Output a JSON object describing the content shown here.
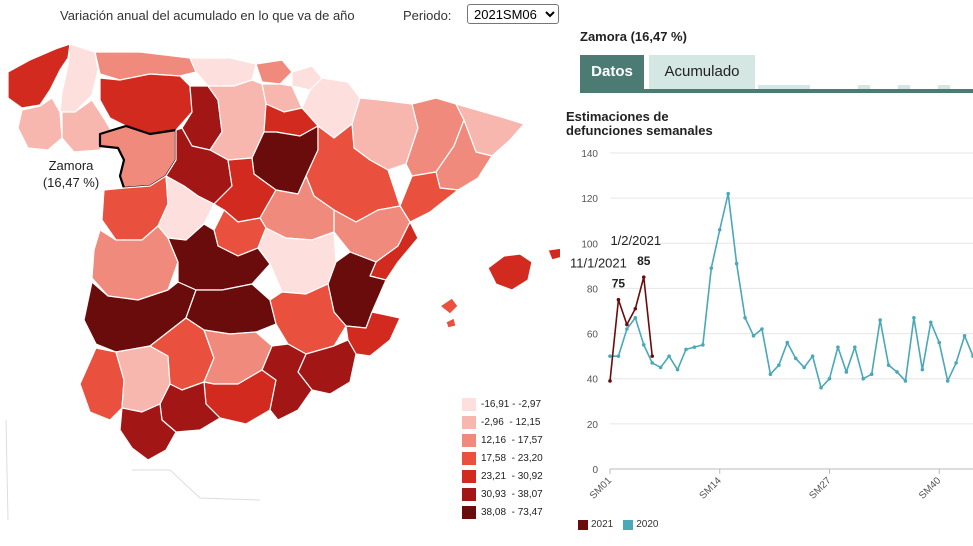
{
  "header": {
    "title": "Variación anual del acumulado en lo que va de año",
    "period_label": "Periodo:",
    "period_value": "2021SM06"
  },
  "map": {
    "selected_region": "Zamora",
    "selected_value": "(16,47 %)",
    "legend": [
      {
        "label": "-16,91 - -2,97",
        "color": "#fde0dd"
      },
      {
        "label": "-2,96  - 12,15",
        "color": "#f7b6ae"
      },
      {
        "label": "12,16  - 17,57",
        "color": "#f08a7c"
      },
      {
        "label": "17,58  - 23,20",
        "color": "#e9503d"
      },
      {
        "label": "23,21  - 30,92",
        "color": "#d22a1e"
      },
      {
        "label": "30,93  - 38,07",
        "color": "#a31616"
      },
      {
        "label": "38,08  - 73,47",
        "color": "#6b0c0c"
      }
    ]
  },
  "detail": {
    "title": "Zamora (16,47 %)",
    "tabs": [
      "Datos",
      "Acumulado"
    ],
    "chart_title_line1": "Estimaciones de",
    "chart_title_line2": "defunciones semanales"
  },
  "chart_data": {
    "type": "line",
    "title": "Estimaciones de defunciones semanales",
    "ylim": [
      0,
      140
    ],
    "yticks": [
      0,
      20,
      40,
      60,
      80,
      100,
      120,
      140
    ],
    "xticks": [
      {
        "week": 1,
        "label": "SM01"
      },
      {
        "week": 14,
        "label": "SM14"
      },
      {
        "week": 27,
        "label": "SM27"
      },
      {
        "week": 40,
        "label": "SM40"
      }
    ],
    "grid": "horizontal",
    "legend_position": "bottom-left",
    "series": [
      {
        "name": "2021",
        "color": "#6b0c0c",
        "weeks": [
          1,
          2,
          3,
          4,
          5,
          6
        ],
        "values": [
          39,
          75,
          64,
          71,
          85,
          50
        ]
      },
      {
        "name": "2020",
        "color": "#4aa8b8",
        "weeks": [
          1,
          2,
          3,
          4,
          5,
          6,
          7,
          8,
          9,
          10,
          11,
          12,
          13,
          14,
          15,
          16,
          17,
          18,
          19,
          20,
          21,
          22,
          23,
          24,
          25,
          26,
          27,
          28,
          29,
          30,
          31,
          32,
          33,
          34,
          35,
          36,
          37,
          38,
          39,
          40,
          41,
          42,
          43,
          44
        ],
        "values": [
          50,
          50,
          62,
          67,
          55,
          47,
          45,
          50,
          44,
          53,
          54,
          55,
          89,
          106,
          122,
          91,
          67,
          59,
          62,
          42,
          46,
          56,
          49,
          45,
          50,
          36,
          40,
          54,
          43,
          54,
          40,
          42,
          66,
          46,
          43,
          39,
          67,
          44,
          65,
          56,
          39,
          47,
          59,
          50
        ]
      }
    ],
    "annotations": [
      {
        "date": "11/1/2021",
        "value": "75",
        "week": 2
      },
      {
        "date": "1/2/2021",
        "value": "85",
        "week": 5
      }
    ]
  }
}
